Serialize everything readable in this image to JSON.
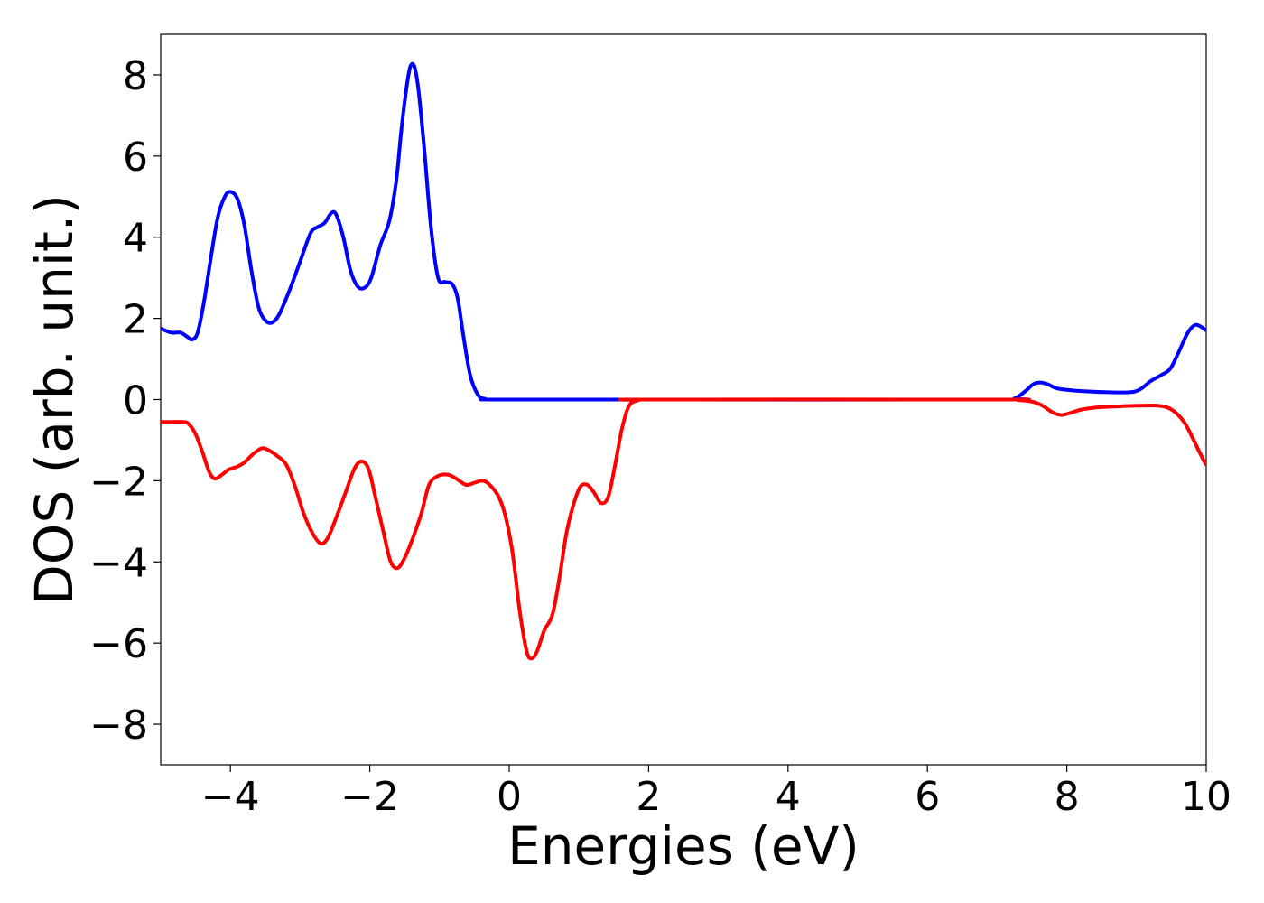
{
  "chart_data": {
    "type": "line",
    "title": "",
    "xlabel": "Energies (eV)",
    "ylabel": "DOS (arb. unit.)",
    "xlim": [
      -5,
      10
    ],
    "ylim": [
      -9,
      9
    ],
    "xticks": [
      -4,
      -2,
      0,
      2,
      4,
      6,
      8,
      10
    ],
    "xtick_labels": [
      "−4",
      "−2",
      "0",
      "2",
      "4",
      "6",
      "8",
      "10"
    ],
    "yticks": [
      8,
      6,
      4,
      2,
      0,
      -2,
      -4,
      -6,
      -8
    ],
    "ytick_labels": [
      "8",
      "6",
      "4",
      "2",
      "0",
      "−2",
      "−4",
      "−6",
      "−8"
    ],
    "grid": false,
    "series": [
      {
        "color": "#0000ff",
        "points": [
          [
            -5.0,
            1.75
          ],
          [
            -4.85,
            1.65
          ],
          [
            -4.72,
            1.65
          ],
          [
            -4.62,
            1.55
          ],
          [
            -4.55,
            1.48
          ],
          [
            -4.47,
            1.65
          ],
          [
            -4.38,
            2.4
          ],
          [
            -4.28,
            3.5
          ],
          [
            -4.18,
            4.5
          ],
          [
            -4.08,
            5.0
          ],
          [
            -4.0,
            5.12
          ],
          [
            -3.9,
            4.95
          ],
          [
            -3.8,
            4.3
          ],
          [
            -3.7,
            3.2
          ],
          [
            -3.6,
            2.3
          ],
          [
            -3.5,
            1.95
          ],
          [
            -3.4,
            1.9
          ],
          [
            -3.3,
            2.1
          ],
          [
            -3.15,
            2.7
          ],
          [
            -3.0,
            3.4
          ],
          [
            -2.85,
            4.1
          ],
          [
            -2.75,
            4.25
          ],
          [
            -2.65,
            4.35
          ],
          [
            -2.55,
            4.6
          ],
          [
            -2.48,
            4.55
          ],
          [
            -2.38,
            4.0
          ],
          [
            -2.28,
            3.2
          ],
          [
            -2.18,
            2.8
          ],
          [
            -2.08,
            2.75
          ],
          [
            -1.98,
            3.0
          ],
          [
            -1.85,
            3.8
          ],
          [
            -1.72,
            4.4
          ],
          [
            -1.62,
            5.4
          ],
          [
            -1.55,
            6.6
          ],
          [
            -1.48,
            7.6
          ],
          [
            -1.42,
            8.2
          ],
          [
            -1.36,
            8.2
          ],
          [
            -1.3,
            7.6
          ],
          [
            -1.22,
            6.2
          ],
          [
            -1.12,
            4.2
          ],
          [
            -1.02,
            3.0
          ],
          [
            -0.92,
            2.9
          ],
          [
            -0.82,
            2.85
          ],
          [
            -0.74,
            2.5
          ],
          [
            -0.66,
            1.6
          ],
          [
            -0.56,
            0.6
          ],
          [
            -0.45,
            0.12
          ],
          [
            -0.35,
            0.02
          ],
          [
            -0.2,
            0.0
          ],
          [
            2.0,
            0.0
          ],
          [
            7.0,
            0.0
          ],
          [
            7.25,
            0.03
          ],
          [
            7.4,
            0.2
          ],
          [
            7.52,
            0.38
          ],
          [
            7.62,
            0.42
          ],
          [
            7.72,
            0.38
          ],
          [
            7.85,
            0.28
          ],
          [
            8.0,
            0.24
          ],
          [
            8.3,
            0.2
          ],
          [
            8.6,
            0.18
          ],
          [
            8.9,
            0.18
          ],
          [
            9.05,
            0.25
          ],
          [
            9.2,
            0.45
          ],
          [
            9.35,
            0.6
          ],
          [
            9.48,
            0.75
          ],
          [
            9.6,
            1.15
          ],
          [
            9.72,
            1.6
          ],
          [
            9.82,
            1.82
          ],
          [
            9.9,
            1.82
          ],
          [
            10.0,
            1.7
          ]
        ]
      },
      {
        "color": "#ff0000",
        "points": [
          [
            -5.0,
            -0.55
          ],
          [
            -4.85,
            -0.55
          ],
          [
            -4.68,
            -0.55
          ],
          [
            -4.6,
            -0.6
          ],
          [
            -4.5,
            -0.85
          ],
          [
            -4.4,
            -1.3
          ],
          [
            -4.3,
            -1.8
          ],
          [
            -4.22,
            -1.95
          ],
          [
            -4.12,
            -1.85
          ],
          [
            -4.02,
            -1.72
          ],
          [
            -3.9,
            -1.65
          ],
          [
            -3.8,
            -1.55
          ],
          [
            -3.68,
            -1.35
          ],
          [
            -3.55,
            -1.2
          ],
          [
            -3.45,
            -1.25
          ],
          [
            -3.32,
            -1.4
          ],
          [
            -3.2,
            -1.6
          ],
          [
            -3.08,
            -2.1
          ],
          [
            -2.95,
            -2.8
          ],
          [
            -2.82,
            -3.3
          ],
          [
            -2.7,
            -3.55
          ],
          [
            -2.6,
            -3.4
          ],
          [
            -2.48,
            -2.9
          ],
          [
            -2.35,
            -2.3
          ],
          [
            -2.22,
            -1.7
          ],
          [
            -2.12,
            -1.52
          ],
          [
            -2.02,
            -1.7
          ],
          [
            -1.92,
            -2.4
          ],
          [
            -1.8,
            -3.3
          ],
          [
            -1.7,
            -4.0
          ],
          [
            -1.6,
            -4.15
          ],
          [
            -1.5,
            -3.9
          ],
          [
            -1.38,
            -3.4
          ],
          [
            -1.26,
            -2.8
          ],
          [
            -1.15,
            -2.1
          ],
          [
            -1.02,
            -1.88
          ],
          [
            -0.88,
            -1.85
          ],
          [
            -0.76,
            -1.95
          ],
          [
            -0.62,
            -2.1
          ],
          [
            -0.5,
            -2.05
          ],
          [
            -0.38,
            -2.0
          ],
          [
            -0.28,
            -2.1
          ],
          [
            -0.15,
            -2.4
          ],
          [
            -0.05,
            -2.9
          ],
          [
            0.05,
            -3.8
          ],
          [
            0.15,
            -5.2
          ],
          [
            0.25,
            -6.2
          ],
          [
            0.32,
            -6.38
          ],
          [
            0.4,
            -6.2
          ],
          [
            0.5,
            -5.7
          ],
          [
            0.62,
            -5.3
          ],
          [
            0.72,
            -4.4
          ],
          [
            0.82,
            -3.3
          ],
          [
            0.92,
            -2.6
          ],
          [
            1.02,
            -2.15
          ],
          [
            1.12,
            -2.1
          ],
          [
            1.22,
            -2.3
          ],
          [
            1.32,
            -2.55
          ],
          [
            1.42,
            -2.4
          ],
          [
            1.52,
            -1.6
          ],
          [
            1.62,
            -0.7
          ],
          [
            1.72,
            -0.15
          ],
          [
            1.85,
            -0.02
          ],
          [
            2.0,
            0.0
          ],
          [
            7.0,
            0.0
          ],
          [
            7.3,
            -0.01
          ],
          [
            7.5,
            -0.05
          ],
          [
            7.65,
            -0.15
          ],
          [
            7.8,
            -0.32
          ],
          [
            7.92,
            -0.38
          ],
          [
            8.05,
            -0.33
          ],
          [
            8.2,
            -0.25
          ],
          [
            8.4,
            -0.2
          ],
          [
            8.7,
            -0.17
          ],
          [
            9.0,
            -0.15
          ],
          [
            9.3,
            -0.15
          ],
          [
            9.45,
            -0.2
          ],
          [
            9.58,
            -0.35
          ],
          [
            9.7,
            -0.6
          ],
          [
            9.82,
            -1.0
          ],
          [
            9.92,
            -1.35
          ],
          [
            10.0,
            -1.62
          ]
        ]
      }
    ]
  }
}
